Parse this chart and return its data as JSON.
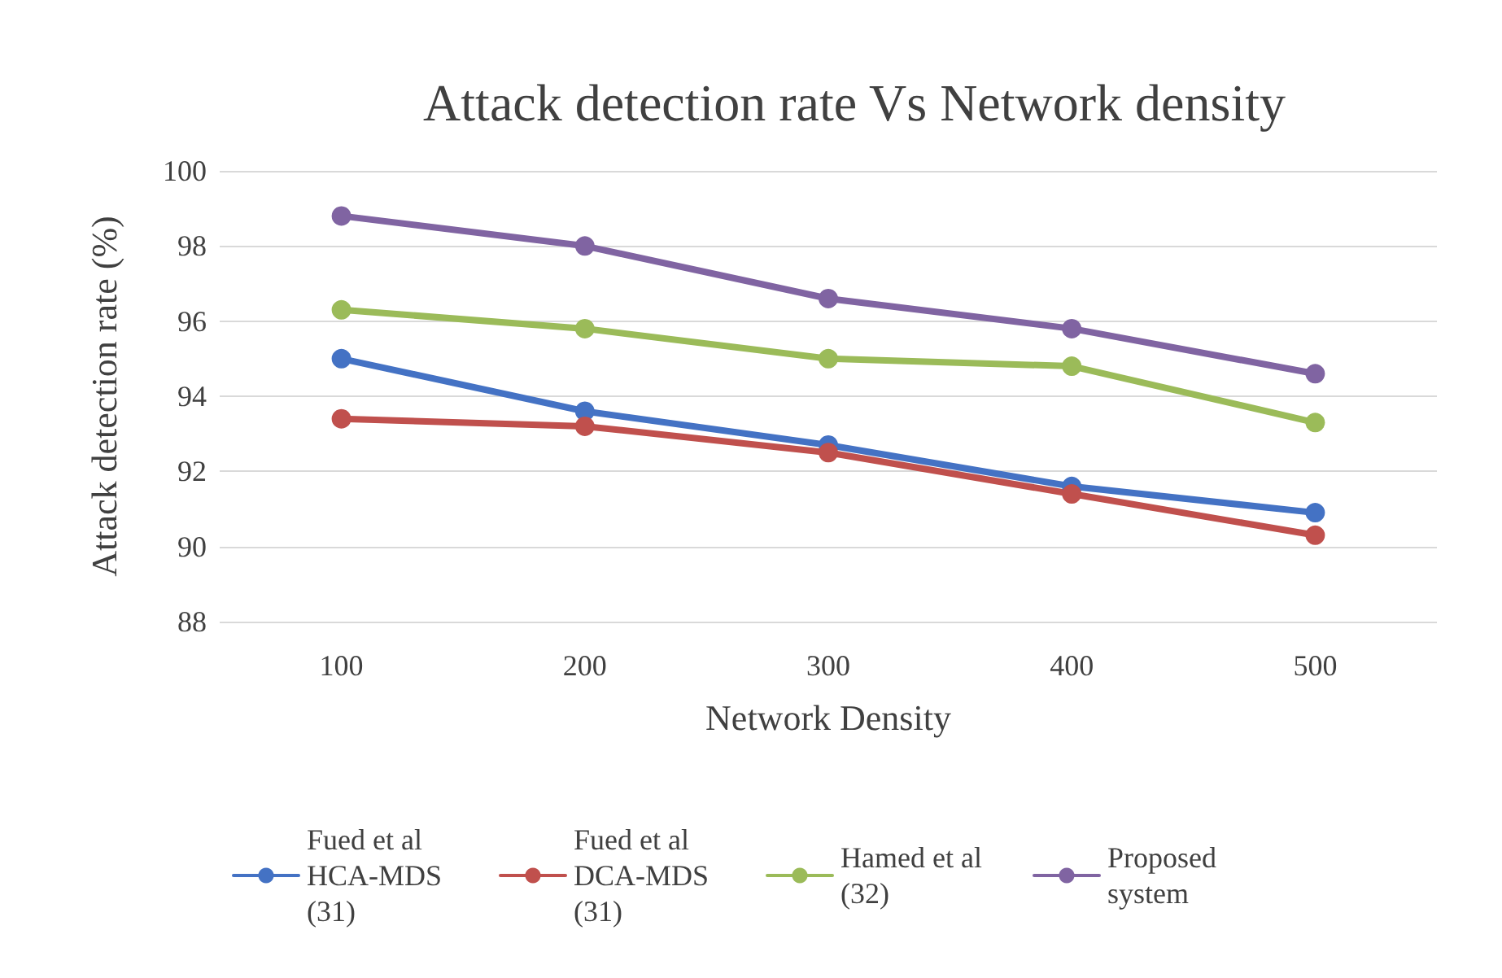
{
  "chart_data": {
    "type": "line",
    "title": "Attack detection rate Vs Network density",
    "xlabel": "Network Density",
    "ylabel": "Attack detection rate (%)",
    "categories": [
      "100",
      "200",
      "300",
      "400",
      "500"
    ],
    "series": [
      {
        "name": "Fued et al HCA-MDS (31)",
        "color": "#4472c4",
        "values": [
          95.0,
          93.6,
          92.7,
          91.6,
          90.9
        ]
      },
      {
        "name": "Fued et al DCA-MDS (31)",
        "color": "#c0504d",
        "values": [
          93.4,
          93.2,
          92.5,
          91.4,
          90.3
        ]
      },
      {
        "name": "Hamed et al (32)",
        "color": "#9bbb59",
        "values": [
          96.3,
          95.8,
          95.0,
          94.8,
          93.3
        ]
      },
      {
        "name": "Proposed system",
        "color": "#8064a2",
        "values": [
          98.8,
          98.0,
          96.6,
          95.8,
          94.6
        ]
      }
    ],
    "ylim": [
      88,
      100
    ],
    "yticks": [
      88,
      90,
      92,
      94,
      96,
      98,
      100
    ],
    "grid": "y",
    "legend": "bottom",
    "marker": "circle",
    "line_style": "solid"
  }
}
